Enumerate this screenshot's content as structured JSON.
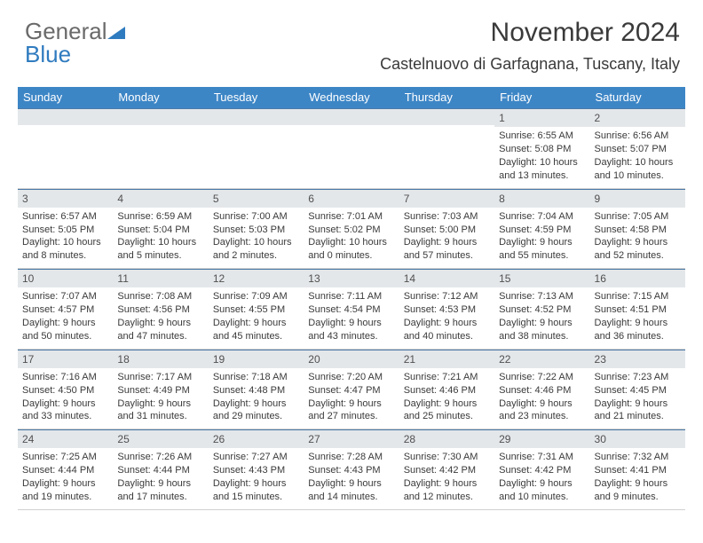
{
  "logo": {
    "part1": "General",
    "part2": "Blue"
  },
  "title": "November 2024",
  "subtitle": "Castelnuovo di Garfagnana, Tuscany, Italy",
  "colors": {
    "header_bg": "#3d86c6",
    "header_text": "#ffffff",
    "daynum_bg": "#e4e7ea",
    "daynum_border_top": "#4a7aa8",
    "row_border": "#d0d0d0",
    "body_text": "#3a3a3a",
    "logo_gray": "#6a6a6a",
    "logo_blue": "#2f7bbf"
  },
  "fontsizes": {
    "title": 30,
    "subtitle": 18,
    "header": 13,
    "daynum": 12,
    "body": 11,
    "logo": 26
  },
  "days_of_week": [
    "Sunday",
    "Monday",
    "Tuesday",
    "Wednesday",
    "Thursday",
    "Friday",
    "Saturday"
  ],
  "weeks": [
    [
      null,
      null,
      null,
      null,
      null,
      {
        "n": "1",
        "sr": "Sunrise: 6:55 AM",
        "ss": "Sunset: 5:08 PM",
        "d1": "Daylight: 10 hours",
        "d2": "and 13 minutes."
      },
      {
        "n": "2",
        "sr": "Sunrise: 6:56 AM",
        "ss": "Sunset: 5:07 PM",
        "d1": "Daylight: 10 hours",
        "d2": "and 10 minutes."
      }
    ],
    [
      {
        "n": "3",
        "sr": "Sunrise: 6:57 AM",
        "ss": "Sunset: 5:05 PM",
        "d1": "Daylight: 10 hours",
        "d2": "and 8 minutes."
      },
      {
        "n": "4",
        "sr": "Sunrise: 6:59 AM",
        "ss": "Sunset: 5:04 PM",
        "d1": "Daylight: 10 hours",
        "d2": "and 5 minutes."
      },
      {
        "n": "5",
        "sr": "Sunrise: 7:00 AM",
        "ss": "Sunset: 5:03 PM",
        "d1": "Daylight: 10 hours",
        "d2": "and 2 minutes."
      },
      {
        "n": "6",
        "sr": "Sunrise: 7:01 AM",
        "ss": "Sunset: 5:02 PM",
        "d1": "Daylight: 10 hours",
        "d2": "and 0 minutes."
      },
      {
        "n": "7",
        "sr": "Sunrise: 7:03 AM",
        "ss": "Sunset: 5:00 PM",
        "d1": "Daylight: 9 hours",
        "d2": "and 57 minutes."
      },
      {
        "n": "8",
        "sr": "Sunrise: 7:04 AM",
        "ss": "Sunset: 4:59 PM",
        "d1": "Daylight: 9 hours",
        "d2": "and 55 minutes."
      },
      {
        "n": "9",
        "sr": "Sunrise: 7:05 AM",
        "ss": "Sunset: 4:58 PM",
        "d1": "Daylight: 9 hours",
        "d2": "and 52 minutes."
      }
    ],
    [
      {
        "n": "10",
        "sr": "Sunrise: 7:07 AM",
        "ss": "Sunset: 4:57 PM",
        "d1": "Daylight: 9 hours",
        "d2": "and 50 minutes."
      },
      {
        "n": "11",
        "sr": "Sunrise: 7:08 AM",
        "ss": "Sunset: 4:56 PM",
        "d1": "Daylight: 9 hours",
        "d2": "and 47 minutes."
      },
      {
        "n": "12",
        "sr": "Sunrise: 7:09 AM",
        "ss": "Sunset: 4:55 PM",
        "d1": "Daylight: 9 hours",
        "d2": "and 45 minutes."
      },
      {
        "n": "13",
        "sr": "Sunrise: 7:11 AM",
        "ss": "Sunset: 4:54 PM",
        "d1": "Daylight: 9 hours",
        "d2": "and 43 minutes."
      },
      {
        "n": "14",
        "sr": "Sunrise: 7:12 AM",
        "ss": "Sunset: 4:53 PM",
        "d1": "Daylight: 9 hours",
        "d2": "and 40 minutes."
      },
      {
        "n": "15",
        "sr": "Sunrise: 7:13 AM",
        "ss": "Sunset: 4:52 PM",
        "d1": "Daylight: 9 hours",
        "d2": "and 38 minutes."
      },
      {
        "n": "16",
        "sr": "Sunrise: 7:15 AM",
        "ss": "Sunset: 4:51 PM",
        "d1": "Daylight: 9 hours",
        "d2": "and 36 minutes."
      }
    ],
    [
      {
        "n": "17",
        "sr": "Sunrise: 7:16 AM",
        "ss": "Sunset: 4:50 PM",
        "d1": "Daylight: 9 hours",
        "d2": "and 33 minutes."
      },
      {
        "n": "18",
        "sr": "Sunrise: 7:17 AM",
        "ss": "Sunset: 4:49 PM",
        "d1": "Daylight: 9 hours",
        "d2": "and 31 minutes."
      },
      {
        "n": "19",
        "sr": "Sunrise: 7:18 AM",
        "ss": "Sunset: 4:48 PM",
        "d1": "Daylight: 9 hours",
        "d2": "and 29 minutes."
      },
      {
        "n": "20",
        "sr": "Sunrise: 7:20 AM",
        "ss": "Sunset: 4:47 PM",
        "d1": "Daylight: 9 hours",
        "d2": "and 27 minutes."
      },
      {
        "n": "21",
        "sr": "Sunrise: 7:21 AM",
        "ss": "Sunset: 4:46 PM",
        "d1": "Daylight: 9 hours",
        "d2": "and 25 minutes."
      },
      {
        "n": "22",
        "sr": "Sunrise: 7:22 AM",
        "ss": "Sunset: 4:46 PM",
        "d1": "Daylight: 9 hours",
        "d2": "and 23 minutes."
      },
      {
        "n": "23",
        "sr": "Sunrise: 7:23 AM",
        "ss": "Sunset: 4:45 PM",
        "d1": "Daylight: 9 hours",
        "d2": "and 21 minutes."
      }
    ],
    [
      {
        "n": "24",
        "sr": "Sunrise: 7:25 AM",
        "ss": "Sunset: 4:44 PM",
        "d1": "Daylight: 9 hours",
        "d2": "and 19 minutes."
      },
      {
        "n": "25",
        "sr": "Sunrise: 7:26 AM",
        "ss": "Sunset: 4:44 PM",
        "d1": "Daylight: 9 hours",
        "d2": "and 17 minutes."
      },
      {
        "n": "26",
        "sr": "Sunrise: 7:27 AM",
        "ss": "Sunset: 4:43 PM",
        "d1": "Daylight: 9 hours",
        "d2": "and 15 minutes."
      },
      {
        "n": "27",
        "sr": "Sunrise: 7:28 AM",
        "ss": "Sunset: 4:43 PM",
        "d1": "Daylight: 9 hours",
        "d2": "and 14 minutes."
      },
      {
        "n": "28",
        "sr": "Sunrise: 7:30 AM",
        "ss": "Sunset: 4:42 PM",
        "d1": "Daylight: 9 hours",
        "d2": "and 12 minutes."
      },
      {
        "n": "29",
        "sr": "Sunrise: 7:31 AM",
        "ss": "Sunset: 4:42 PM",
        "d1": "Daylight: 9 hours",
        "d2": "and 10 minutes."
      },
      {
        "n": "30",
        "sr": "Sunrise: 7:32 AM",
        "ss": "Sunset: 4:41 PM",
        "d1": "Daylight: 9 hours",
        "d2": "and 9 minutes."
      }
    ]
  ]
}
